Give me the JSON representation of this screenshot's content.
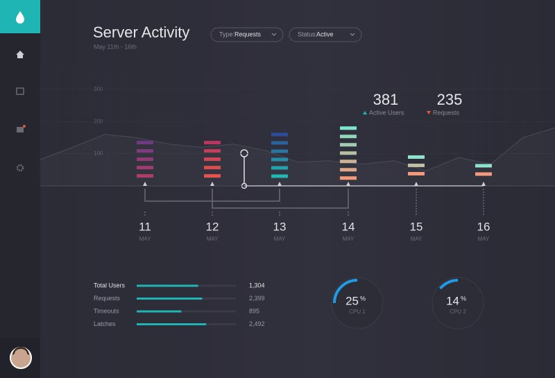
{
  "header": {
    "title": "Server Activity",
    "subtitle": "May 11th - 16th",
    "filters": [
      {
        "label": "Type:",
        "value": "Requests"
      },
      {
        "label": "Status:",
        "value": "Active"
      }
    ]
  },
  "stats": [
    {
      "value": "381",
      "label": "Active Users",
      "color": "#1fb5c8"
    },
    {
      "value": "235",
      "label": "Requests",
      "color": "#e0553f"
    }
  ],
  "chart_data": {
    "type": "bar",
    "categories": [
      "11",
      "12",
      "13",
      "14",
      "15",
      "16"
    ],
    "month": "MAY",
    "values": [
      140,
      140,
      165,
      185,
      95,
      68
    ],
    "colors": [
      [
        "#6e3a86",
        "#b23c68"
      ],
      [
        "#b8375e",
        "#e4544a"
      ],
      [
        "#2b4c9c",
        "#1fb8b4"
      ],
      [
        "#7ce3cc",
        "#f29a7a"
      ],
      [
        "#8ee3cc",
        "#f29a7a"
      ],
      [
        "#8ee3cc",
        "#f29a7a"
      ]
    ],
    "trend": [
      82,
      120,
      160,
      150,
      130,
      120,
      130,
      110,
      74,
      78,
      68,
      78,
      47,
      88,
      68,
      150,
      181
    ],
    "ylim": [
      0,
      330
    ],
    "yticks": [
      300,
      200,
      100
    ]
  },
  "metrics": [
    {
      "label": "Total Users",
      "value": "1,304",
      "fill": 62
    },
    {
      "label": "Requests",
      "value": "2,399",
      "fill": 66
    },
    {
      "label": "Timeouts",
      "value": "895",
      "fill": 45
    },
    {
      "label": "Latches",
      "value": "2,492",
      "fill": 70
    }
  ],
  "gauges": [
    {
      "value": 25,
      "unit": "%",
      "label": "CPU 1"
    },
    {
      "value": 14,
      "unit": "%",
      "label": "CPU 2"
    }
  ]
}
